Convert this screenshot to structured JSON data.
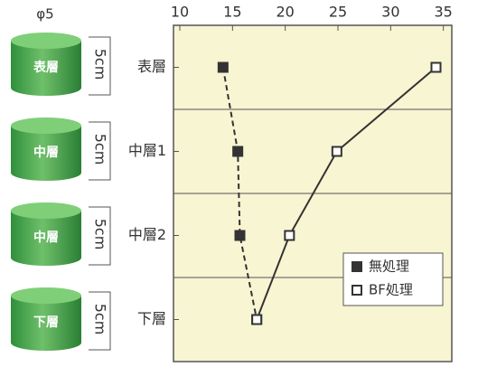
{
  "diagram": {
    "diameter_label": "φ5",
    "cylinders": [
      {
        "label": "表層",
        "height_label": "5cm"
      },
      {
        "label": "中層",
        "height_label": "5cm"
      },
      {
        "label": "中層",
        "height_label": "5cm"
      },
      {
        "label": "下層",
        "height_label": "5cm"
      }
    ]
  },
  "chart_data": {
    "type": "line",
    "orientation": "horizontal",
    "categories": [
      "表層",
      "中層1",
      "中層2",
      "下層"
    ],
    "series": [
      {
        "name": "無処理",
        "color": "#333333",
        "marker": "filled",
        "dash": "dashed",
        "values": [
          14.1,
          15.5,
          15.7,
          17.3
        ]
      },
      {
        "name": "BF処理",
        "color": "#333333",
        "marker": "open",
        "dash": "solid",
        "values": [
          34.3,
          24.9,
          20.4,
          17.3
        ]
      }
    ],
    "xlim": [
      9.4,
      35.8
    ],
    "xticks": [
      10,
      15,
      20,
      25,
      30,
      35
    ],
    "grid": true,
    "legend": "lower right"
  }
}
